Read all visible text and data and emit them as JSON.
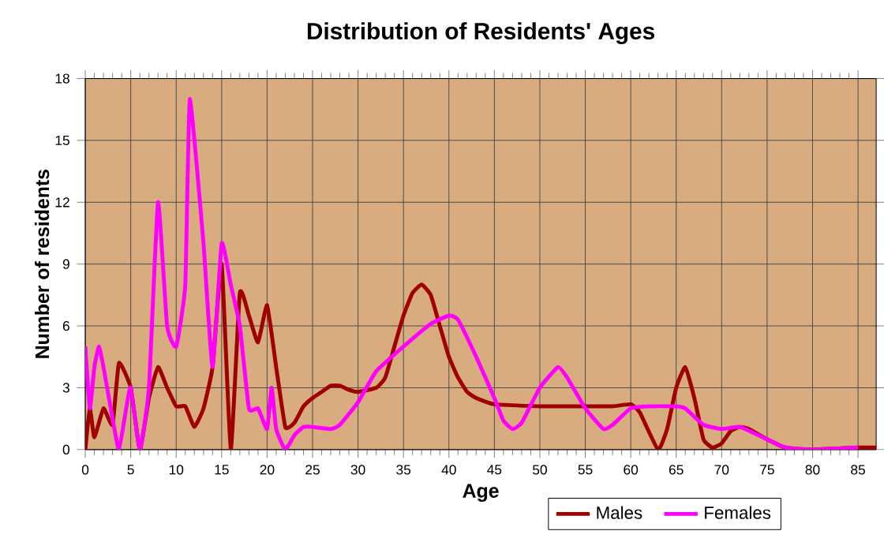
{
  "chart_data": {
    "type": "line",
    "title": "Distribution of Residents' Ages",
    "xlabel": "Age",
    "ylabel": "Number of residents",
    "xlim": [
      0,
      87
    ],
    "xticks": [
      0,
      5,
      10,
      15,
      20,
      25,
      30,
      35,
      40,
      45,
      50,
      55,
      60,
      65,
      70,
      75,
      80,
      85
    ],
    "ylim": [
      0,
      18
    ],
    "yticks": [
      0,
      3,
      6,
      9,
      12,
      15,
      18
    ],
    "grid": true,
    "legend": "bottom right",
    "series": [
      {
        "name": "Males",
        "color": "#a00000",
        "x": [
          0,
          0.5,
          1,
          2,
          3,
          3.7,
          5,
          6,
          7,
          8,
          9,
          10,
          11,
          12,
          13,
          14,
          15,
          16,
          17,
          18,
          19,
          20,
          21,
          22,
          23,
          24,
          25,
          26,
          27,
          28,
          29,
          30,
          32,
          33,
          34,
          35,
          36,
          37,
          38,
          39,
          40,
          41,
          42,
          43,
          45,
          50,
          55,
          58,
          60,
          61,
          63,
          64,
          65,
          66,
          67,
          68,
          69,
          70,
          71,
          72,
          73,
          75,
          77,
          80,
          85,
          87
        ],
        "values": [
          0,
          2,
          0.6,
          2,
          1.2,
          4.2,
          3,
          0,
          2.5,
          4,
          3,
          2.1,
          2.1,
          1.1,
          2,
          4,
          9,
          0,
          7.6,
          6.5,
          5.2,
          7,
          4,
          1.1,
          1.3,
          2.1,
          2.5,
          2.8,
          3.1,
          3.1,
          2.9,
          2.8,
          3,
          3.5,
          5,
          6.5,
          7.6,
          8,
          7.5,
          6,
          4.5,
          3.5,
          2.8,
          2.5,
          2.2,
          2.1,
          2.1,
          2.1,
          2.2,
          1.8,
          0,
          1,
          3,
          4,
          2.5,
          0.5,
          0.1,
          0.3,
          0.9,
          1.1,
          1,
          0.5,
          0.1,
          0,
          0.1,
          0.1
        ]
      },
      {
        "name": "Females",
        "color": "#ff00ff",
        "x": [
          0,
          0.5,
          1,
          1.5,
          2,
          3,
          3.7,
          4.5,
          5,
          6,
          7,
          8,
          9,
          10,
          11,
          11.5,
          13,
          14,
          15,
          16,
          17,
          18,
          19,
          20,
          20.5,
          21,
          22,
          23,
          24,
          25,
          27,
          28,
          30,
          32,
          35,
          38,
          40,
          41,
          43,
          45,
          46,
          47,
          48,
          50,
          52,
          53,
          55,
          57,
          58,
          60,
          62,
          65,
          66,
          68,
          70,
          72,
          75,
          77,
          80,
          85
        ],
        "values": [
          5,
          2,
          4,
          5,
          4,
          1.5,
          0,
          2,
          3,
          0,
          3,
          12,
          6,
          5,
          8,
          17,
          10,
          4,
          10,
          8,
          6,
          2,
          2,
          1,
          3,
          1,
          0,
          0.7,
          1.1,
          1.1,
          1,
          1.2,
          2.3,
          3.8,
          5,
          6.1,
          6.5,
          6.3,
          4.5,
          2.5,
          1.4,
          1,
          1.3,
          3,
          4,
          3.5,
          2,
          1,
          1.2,
          2,
          2.1,
          2.1,
          2,
          1.2,
          1,
          1.1,
          0.5,
          0.1,
          0,
          0.1
        ]
      }
    ]
  }
}
